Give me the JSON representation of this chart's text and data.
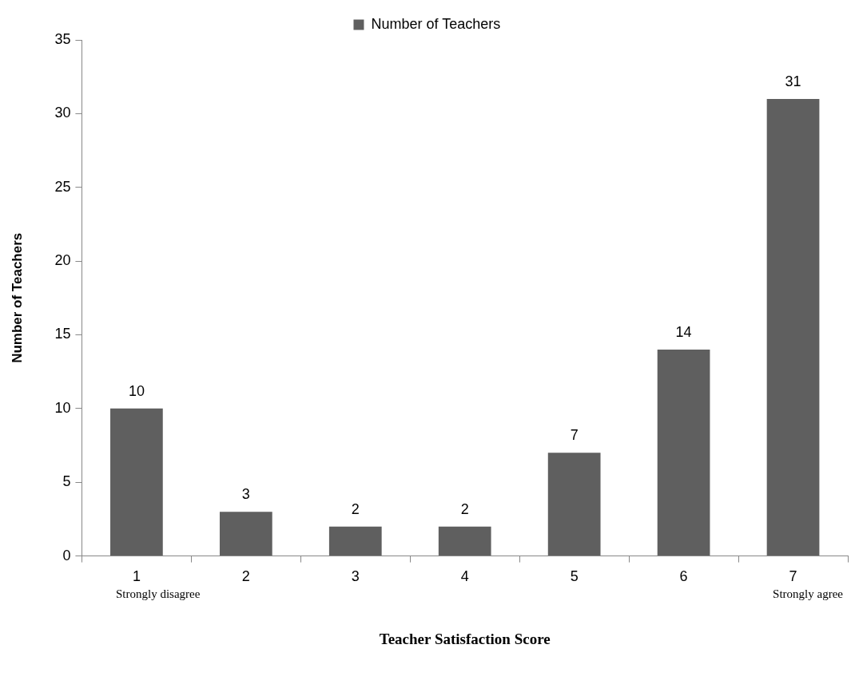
{
  "chart_data": {
    "type": "bar",
    "xlabel": "Teacher Satisfaction Score",
    "ylabel": "Number of Teachers",
    "categories": [
      "1",
      "2",
      "3",
      "4",
      "5",
      "6",
      "7"
    ],
    "series": [
      {
        "name": "Number of Teachers",
        "color": "#5f5f5f",
        "values": [
          10,
          3,
          2,
          2,
          7,
          14,
          31
        ]
      }
    ],
    "ylim": [
      0,
      35
    ],
    "yticks": [
      0,
      5,
      10,
      15,
      20,
      25,
      30,
      35
    ],
    "grid": false,
    "legend": "top",
    "data_labels": true,
    "annotations": [
      "Strongly disagree",
      "Strongly agree"
    ]
  }
}
